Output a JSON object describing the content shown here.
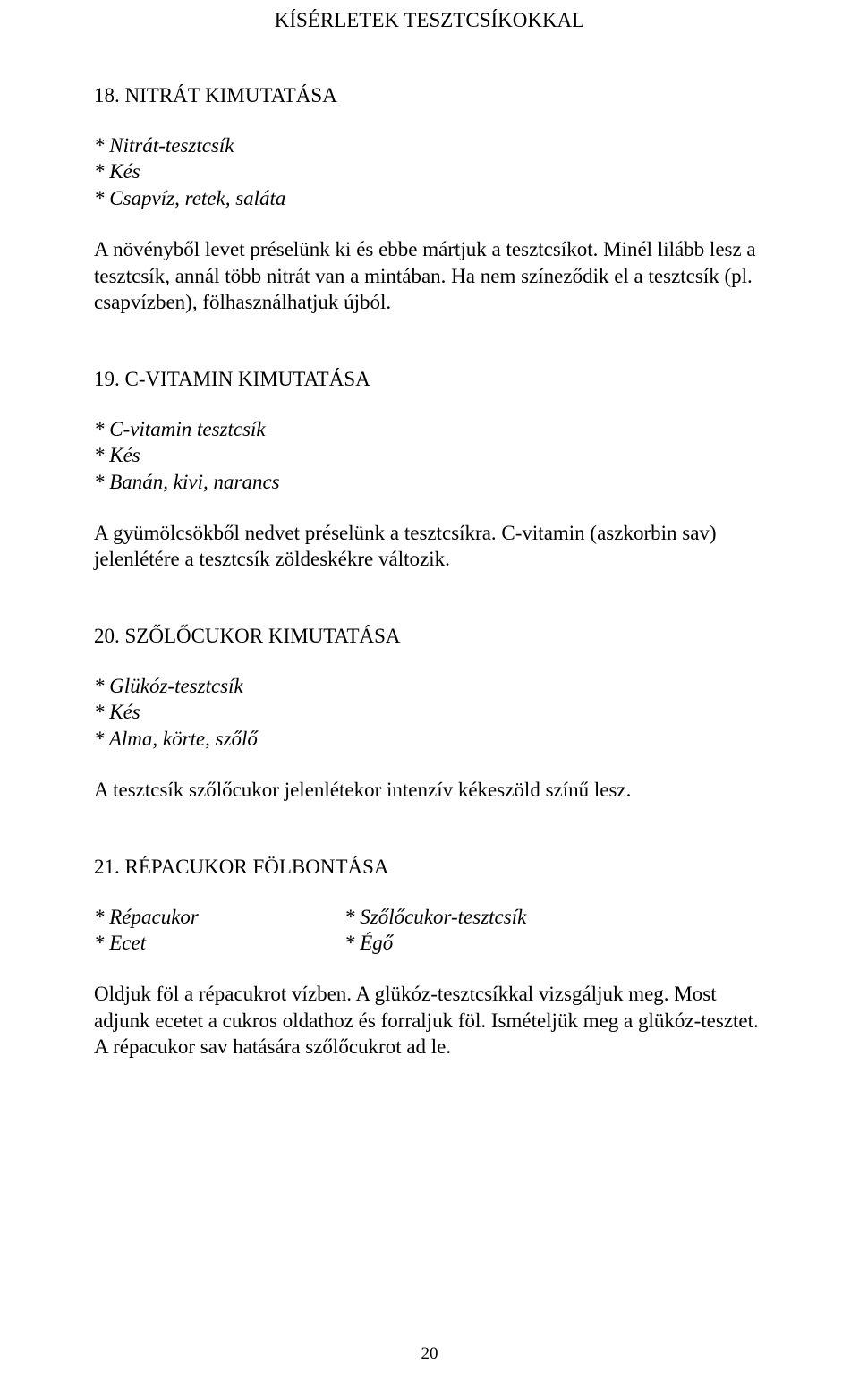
{
  "doc": {
    "title": "KÍSÉRLETEK TESZTCSÍKOKKAL",
    "page_number": "20"
  },
  "sections": {
    "s18": {
      "heading": "18. NITRÁT KIMUTATÁSA",
      "materials": [
        "* Nitrát-tesztcsík",
        "* Kés",
        "* Csapvíz, retek, saláta"
      ],
      "body": "A növényből levet préselünk ki és ebbe mártjuk a tesztcsíkot. Minél lilább lesz a tesztcsík, annál több nitrát van a mintában. Ha nem színeződik el a tesztcsík (pl. csapvízben), fölhasználhatjuk újból."
    },
    "s19": {
      "heading": "19. C-VITAMIN KIMUTATÁSA",
      "materials": [
        "* C-vitamin tesztcsík",
        "* Kés",
        "* Banán, kivi, narancs"
      ],
      "body": "A gyümölcsökből nedvet préselünk a tesztcsíkra. C-vitamin (aszkorbin sav) jelenlétére a tesztcsík zöldeskékre változik."
    },
    "s20": {
      "heading": "20. SZŐLŐCUKOR KIMUTATÁSA",
      "materials": [
        "* Glükóz-tesztcsík",
        "* Kés",
        "* Alma, körte, szőlő"
      ],
      "body": "A tesztcsík szőlőcukor jelenlétekor intenzív kékeszöld színű lesz."
    },
    "s21": {
      "heading": "21. RÉPACUKOR FÖLBONTÁSA",
      "materials_left": [
        "* Répacukor",
        "* Ecet"
      ],
      "materials_right": [
        "* Szőlőcukor-tesztcsík",
        "* Égő"
      ],
      "body": "Oldjuk föl a répacukrot vízben. A glükóz-tesztcsíkkal vizsgáljuk meg. Most adjunk ecetet a cukros oldathoz és forraljuk föl. Ismételjük meg a glükóz-tesztet. A répacukor sav hatására szőlőcukrot ad le."
    }
  }
}
